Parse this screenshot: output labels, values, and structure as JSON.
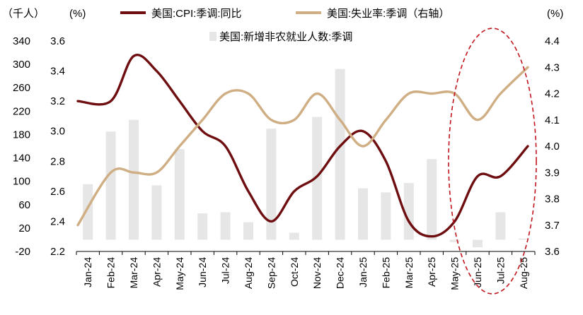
{
  "chart_data": {
    "type": "bar+line",
    "categories": [
      "Jan-24",
      "Feb-24",
      "Mar-24",
      "Apr-24",
      "May-24",
      "Jun-24",
      "Jul-24",
      "Aug-24",
      "Sep-24",
      "Oct-24",
      "Nov-24",
      "Dec-24",
      "Jan-25",
      "Feb-25",
      "Mar-25",
      "Apr-25",
      "May-25",
      "Jun-25",
      "Jul-25",
      "Aug-25"
    ],
    "axis_units": {
      "left1": "（千人）",
      "left2": "(%)",
      "right": "(%)"
    },
    "axes": {
      "payrolls": {
        "side": "left-outer",
        "range": [
          -20,
          340
        ],
        "ticks": [
          "340",
          "300",
          "260",
          "220",
          "180",
          "140",
          "100",
          "60",
          "20",
          "-20"
        ]
      },
      "cpi": {
        "side": "left-inner",
        "range": [
          2.2,
          3.6
        ],
        "ticks": [
          "3.6",
          "3.4",
          "3.2",
          "3.0",
          "2.8",
          "2.6",
          "2.4",
          "2.2"
        ]
      },
      "unemployment": {
        "side": "right",
        "range": [
          3.6,
          4.4
        ],
        "ticks": [
          "4.4",
          "4.3",
          "4.2",
          "4.1",
          "4.0",
          "3.9",
          "3.8",
          "3.7",
          "3.6"
        ]
      }
    },
    "series": [
      {
        "name": "美国:CPI:季调:同比",
        "type": "line",
        "axis": "cpi",
        "color": "#6e0e10",
        "values": [
          3.2,
          3.2,
          3.5,
          3.4,
          3.2,
          3.0,
          2.9,
          2.6,
          2.4,
          2.6,
          2.7,
          2.9,
          3.0,
          2.8,
          2.4,
          2.3,
          2.4,
          2.7,
          2.7,
          2.9
        ]
      },
      {
        "name": "美国:失业率:季调（右轴）",
        "type": "line",
        "axis": "unemployment",
        "color": "#cfae84",
        "values": [
          3.7,
          3.9,
          3.9,
          3.9,
          4.0,
          4.1,
          4.2,
          4.2,
          4.1,
          4.1,
          4.2,
          4.1,
          4.0,
          4.1,
          4.2,
          4.2,
          4.2,
          4.1,
          4.2,
          4.3
        ]
      },
      {
        "name": "美国:新增非农就业人数:季调",
        "type": "bar",
        "axis": "payrolls",
        "color": "#e6e6e6",
        "values": [
          95,
          185,
          205,
          93,
          155,
          45,
          47,
          30,
          190,
          12,
          210,
          292,
          88,
          81,
          97,
          138,
          -4,
          -13,
          47,
          2
        ]
      }
    ],
    "annotation": "red dashed ellipse highlighting May-25 to Aug-25",
    "legend_position": "top"
  }
}
